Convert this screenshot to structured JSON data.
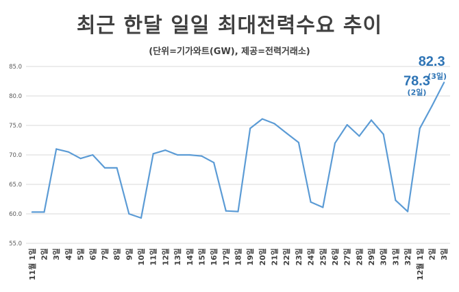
{
  "chart_data": {
    "type": "line",
    "title": "최근 한달 일일 최대전력수요 추이",
    "subtitle": "(단위=기가와트(GW), 제공=전력거래소)",
    "xlabel": "",
    "ylabel": "",
    "ylim": [
      55,
      85
    ],
    "yticks": [
      "55.0",
      "60.0",
      "65.0",
      "70.0",
      "75.0",
      "80.0",
      "85.0"
    ],
    "grid": true,
    "series_color": "#5b9bd5",
    "categories": [
      "11월 1일",
      "2일",
      "3일",
      "4일",
      "5일",
      "6일",
      "7일",
      "8일",
      "9일",
      "10일",
      "11일",
      "12일",
      "13일",
      "14일",
      "15일",
      "16일",
      "17일",
      "18일",
      "19일",
      "20일",
      "21일",
      "22일",
      "23일",
      "24일",
      "25일",
      "26일",
      "27일",
      "28일",
      "29일",
      "30일",
      "31일",
      "32일",
      "12월 1일",
      "2일",
      "3일"
    ],
    "values": [
      60.3,
      60.3,
      71.0,
      70.5,
      69.4,
      70.0,
      67.8,
      67.8,
      60.0,
      59.3,
      70.2,
      70.8,
      70.0,
      70.0,
      69.8,
      68.7,
      60.5,
      60.4,
      74.5,
      76.1,
      75.3,
      73.7,
      72.1,
      62.0,
      61.1,
      72.0,
      75.1,
      73.2,
      75.9,
      73.5,
      62.3,
      60.4,
      74.5,
      78.3,
      82.3
    ],
    "annotations": [
      {
        "value": "78.3",
        "note": "(2일)",
        "index": 33
      },
      {
        "value": "82.3",
        "note": "(3일)",
        "index": 34
      }
    ]
  }
}
